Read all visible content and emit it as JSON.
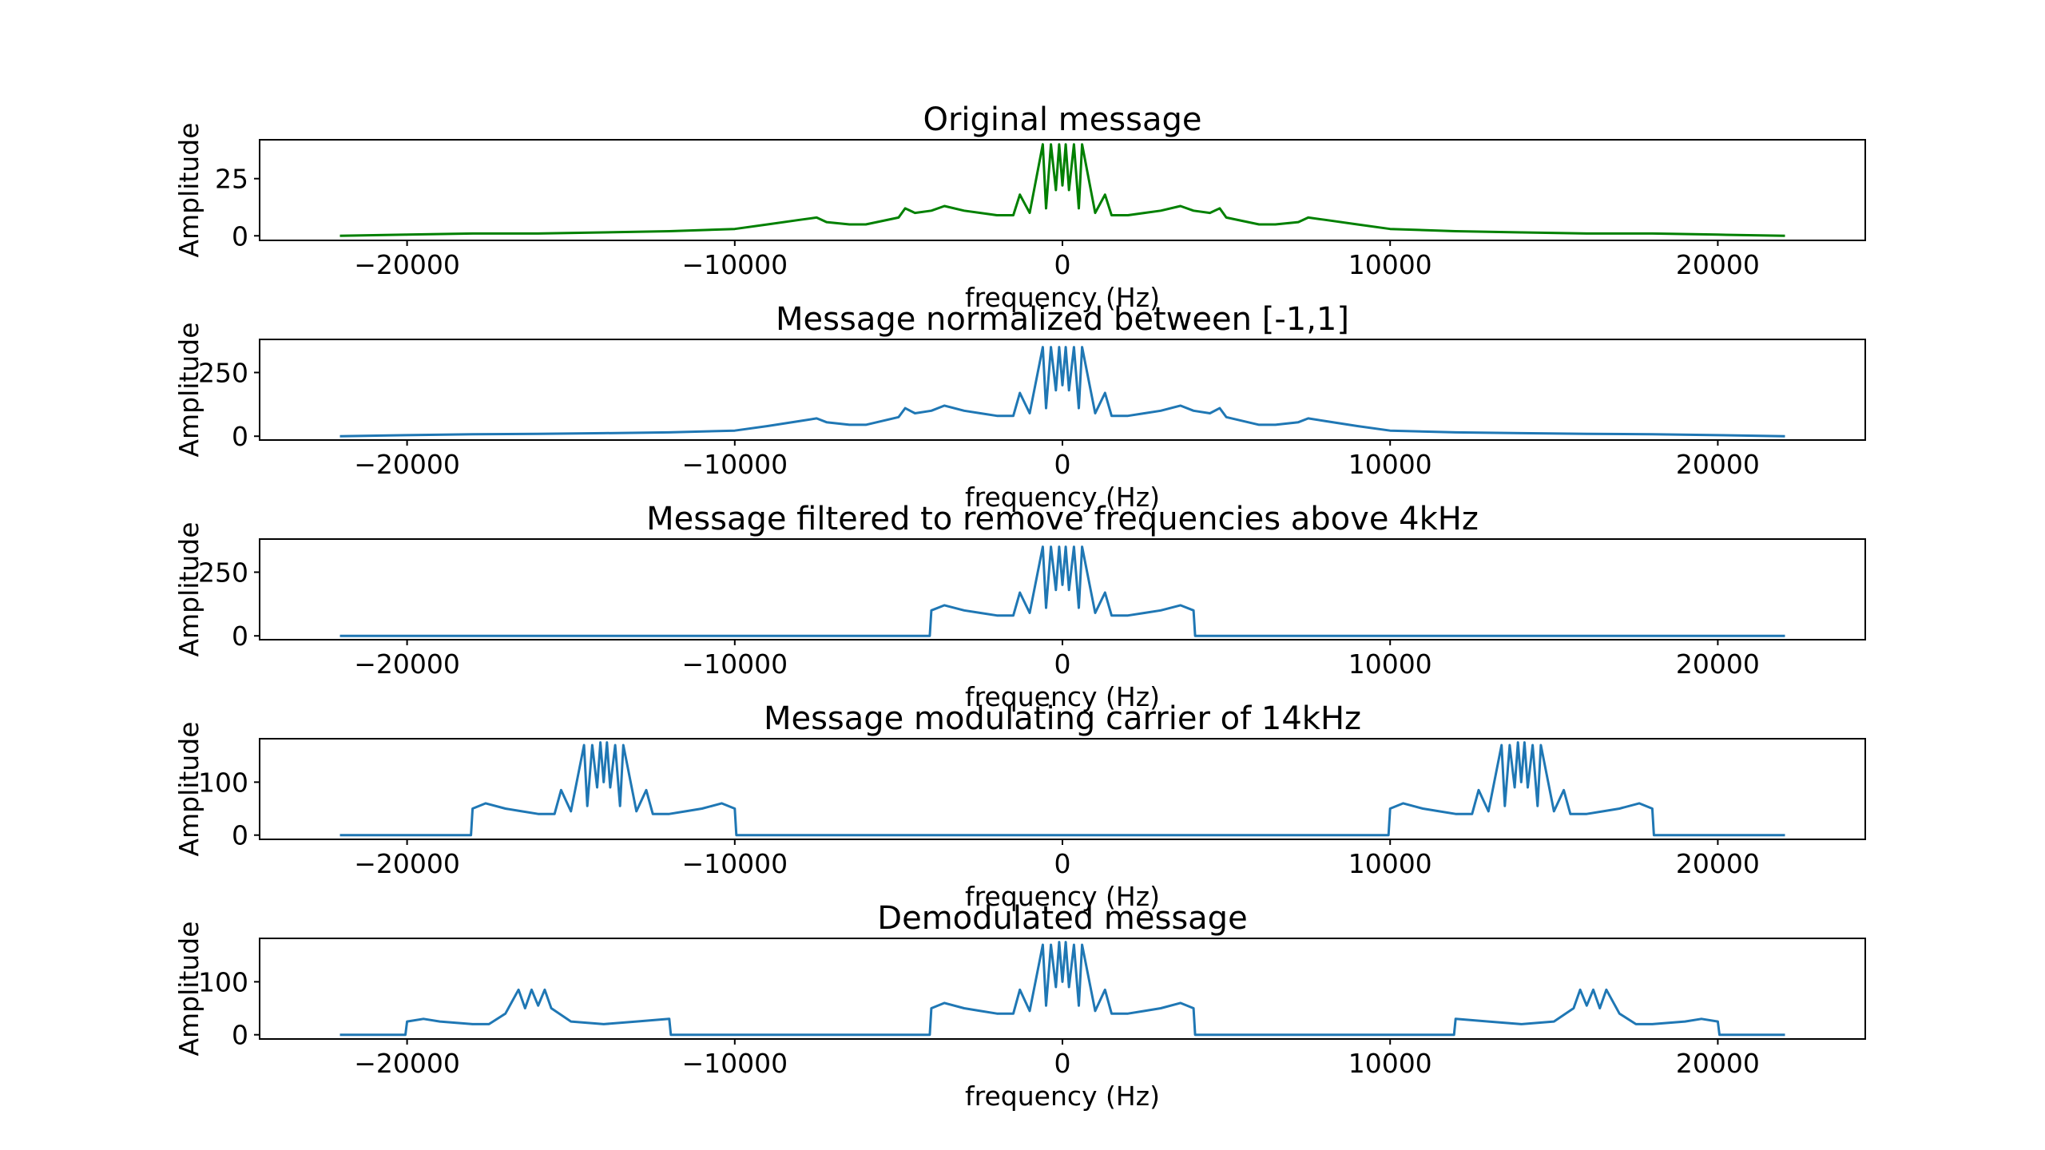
{
  "chart_data": [
    {
      "type": "line",
      "title": "Original message",
      "xlabel": "frequency (Hz)",
      "ylabel": "Amplitude",
      "xlim": [
        -24500,
        24500
      ],
      "ylim": [
        -2,
        42
      ],
      "xticks": [
        -20000,
        -10000,
        0,
        10000,
        20000
      ],
      "xtick_labels": [
        "−20000",
        "−10000",
        "0",
        "10000",
        "20000"
      ],
      "yticks": [
        0,
        25
      ],
      "ytick_labels": [
        "0",
        "25"
      ],
      "color": "#008000",
      "grid": false,
      "series": [
        {
          "x": [
            -22050,
            -20000,
            -18000,
            -16000,
            -14000,
            -12000,
            -10000,
            -9000,
            -8000,
            -7500,
            -7200,
            -6500,
            -6000,
            -5000,
            -4800,
            -4500,
            -4000,
            -3600,
            -3000,
            -2500,
            -2000,
            -1500,
            -1300,
            -1000,
            -600,
            -500,
            -350,
            -200,
            -100,
            0,
            100,
            200,
            350,
            500,
            600,
            1000,
            1300,
            1500,
            2000,
            2500,
            3000,
            3600,
            4000,
            4500,
            4800,
            5000,
            6000,
            6500,
            7200,
            7500,
            8000,
            9000,
            10000,
            12000,
            14000,
            16000,
            18000,
            20000,
            22050
          ],
          "y": [
            0,
            0.5,
            1,
            1,
            1.5,
            2,
            3,
            5,
            7,
            8,
            6,
            5,
            5,
            8,
            12,
            10,
            11,
            13,
            11,
            10,
            9,
            9,
            18,
            10,
            40,
            12,
            40,
            20,
            40,
            22,
            40,
            20,
            40,
            12,
            40,
            10,
            18,
            9,
            9,
            10,
            11,
            13,
            11,
            10,
            12,
            8,
            5,
            5,
            6,
            8,
            7,
            5,
            3,
            2,
            1.5,
            1,
            1,
            0.5,
            0
          ]
        }
      ]
    },
    {
      "type": "line",
      "title": "Message normalized between [-1,1]",
      "xlabel": "frequency (Hz)",
      "ylabel": "Amplitude",
      "xlim": [
        -24500,
        24500
      ],
      "ylim": [
        -15,
        380
      ],
      "xticks": [
        -20000,
        -10000,
        0,
        10000,
        20000
      ],
      "xtick_labels": [
        "−20000",
        "−10000",
        "0",
        "10000",
        "20000"
      ],
      "yticks": [
        0,
        250
      ],
      "ytick_labels": [
        "0",
        "250"
      ],
      "color": "#1f77b4",
      "grid": false,
      "series": [
        {
          "x": [
            -22050,
            -20000,
            -18000,
            -16000,
            -14000,
            -12000,
            -10000,
            -9000,
            -8000,
            -7500,
            -7200,
            -6500,
            -6000,
            -5000,
            -4800,
            -4500,
            -4000,
            -3600,
            -3000,
            -2500,
            -2000,
            -1500,
            -1300,
            -1000,
            -600,
            -500,
            -350,
            -200,
            -100,
            0,
            100,
            200,
            350,
            500,
            600,
            1000,
            1300,
            1500,
            2000,
            2500,
            3000,
            3600,
            4000,
            4500,
            4800,
            5000,
            6000,
            6500,
            7200,
            7500,
            8000,
            9000,
            10000,
            12000,
            14000,
            16000,
            18000,
            20000,
            22050
          ],
          "y": [
            0,
            4,
            8,
            9,
            12,
            15,
            22,
            40,
            60,
            70,
            55,
            45,
            45,
            75,
            110,
            90,
            100,
            120,
            100,
            90,
            80,
            80,
            170,
            90,
            350,
            110,
            350,
            180,
            350,
            200,
            350,
            180,
            350,
            110,
            350,
            90,
            170,
            80,
            80,
            90,
            100,
            120,
            100,
            90,
            110,
            75,
            45,
            45,
            55,
            70,
            60,
            40,
            22,
            15,
            12,
            9,
            8,
            4,
            0
          ]
        }
      ]
    },
    {
      "type": "line",
      "title": "Message filtered to remove frequencies above 4kHz",
      "xlabel": "frequency (Hz)",
      "ylabel": "Amplitude",
      "xlim": [
        -24500,
        24500
      ],
      "ylim": [
        -15,
        380
      ],
      "xticks": [
        -20000,
        -10000,
        0,
        10000,
        20000
      ],
      "xtick_labels": [
        "−20000",
        "−10000",
        "0",
        "10000",
        "20000"
      ],
      "yticks": [
        0,
        250
      ],
      "ytick_labels": [
        "0",
        "250"
      ],
      "color": "#1f77b4",
      "grid": false,
      "series": [
        {
          "x": [
            -22050,
            -4050,
            -4000,
            -3600,
            -3000,
            -2500,
            -2000,
            -1500,
            -1300,
            -1000,
            -600,
            -500,
            -350,
            -200,
            -100,
            0,
            100,
            200,
            350,
            500,
            600,
            1000,
            1300,
            1500,
            2000,
            2500,
            3000,
            3600,
            4000,
            4050,
            22050
          ],
          "y": [
            0,
            0,
            100,
            120,
            100,
            90,
            80,
            80,
            170,
            90,
            350,
            110,
            350,
            180,
            350,
            200,
            350,
            180,
            350,
            110,
            350,
            90,
            170,
            80,
            80,
            90,
            100,
            120,
            100,
            0,
            0
          ]
        }
      ]
    },
    {
      "type": "line",
      "title": "Message modulating carrier of 14kHz",
      "xlabel": "frequency (Hz)",
      "ylabel": "Amplitude",
      "xlim": [
        -24500,
        24500
      ],
      "ylim": [
        -8,
        182
      ],
      "xticks": [
        -20000,
        -10000,
        0,
        10000,
        20000
      ],
      "xtick_labels": [
        "−20000",
        "−10000",
        "0",
        "10000",
        "20000"
      ],
      "yticks": [
        0,
        100
      ],
      "ytick_labels": [
        "0",
        "100"
      ],
      "color": "#1f77b4",
      "grid": false,
      "series": [
        {
          "x": [
            -22050,
            -18050,
            -18000,
            -17600,
            -17000,
            -16500,
            -16000,
            -15500,
            -15300,
            -15000,
            -14600,
            -14500,
            -14350,
            -14200,
            -14100,
            -14000,
            -13900,
            -13800,
            -13650,
            -13500,
            -13400,
            -13000,
            -12700,
            -12500,
            -12000,
            -11500,
            -11000,
            -10400,
            -10000,
            -9950,
            9950,
            10000,
            10400,
            11000,
            11500,
            12000,
            12500,
            12700,
            13000,
            13400,
            13500,
            13650,
            13800,
            13900,
            14000,
            14100,
            14200,
            14350,
            14500,
            14600,
            15000,
            15300,
            15500,
            16000,
            16500,
            17000,
            17600,
            18000,
            18050,
            22050
          ],
          "y": [
            0,
            0,
            50,
            60,
            50,
            45,
            40,
            40,
            85,
            45,
            170,
            55,
            170,
            90,
            175,
            100,
            175,
            90,
            170,
            55,
            170,
            45,
            85,
            40,
            40,
            45,
            50,
            60,
            50,
            0,
            0,
            50,
            60,
            50,
            45,
            40,
            40,
            85,
            45,
            170,
            55,
            170,
            90,
            175,
            100,
            175,
            90,
            170,
            55,
            170,
            45,
            85,
            40,
            40,
            45,
            50,
            60,
            50,
            0,
            0
          ]
        }
      ]
    },
    {
      "type": "line",
      "title": "Demodulated message",
      "xlabel": "frequency (Hz)",
      "ylabel": "Amplitude",
      "xlim": [
        -24500,
        24500
      ],
      "ylim": [
        -8,
        182
      ],
      "xticks": [
        -20000,
        -10000,
        0,
        10000,
        20000
      ],
      "xtick_labels": [
        "−20000",
        "−10000",
        "0",
        "10000",
        "20000"
      ],
      "yticks": [
        0,
        100
      ],
      "ytick_labels": [
        "0",
        "100"
      ],
      "color": "#1f77b4",
      "grid": false,
      "series": [
        {
          "x": [
            -22050,
            -20050,
            -20000,
            -19500,
            -19000,
            -18000,
            -17500,
            -17000,
            -16600,
            -16400,
            -16200,
            -16000,
            -15800,
            -15600,
            -15000,
            -14000,
            -13000,
            -12000,
            -11950,
            -4050,
            -4000,
            -3600,
            -3000,
            -2500,
            -2000,
            -1500,
            -1300,
            -1000,
            -600,
            -500,
            -350,
            -200,
            -100,
            0,
            100,
            200,
            350,
            500,
            600,
            1000,
            1300,
            1500,
            2000,
            2500,
            3000,
            3600,
            4000,
            4050,
            11950,
            12000,
            13000,
            14000,
            15000,
            15600,
            15800,
            16000,
            16200,
            16400,
            16600,
            17000,
            17500,
            18000,
            19000,
            19500,
            20000,
            20050,
            22050
          ],
          "y": [
            0,
            0,
            25,
            30,
            25,
            20,
            20,
            40,
            85,
            50,
            85,
            55,
            85,
            50,
            25,
            20,
            25,
            30,
            0,
            0,
            50,
            60,
            50,
            45,
            40,
            40,
            85,
            45,
            170,
            55,
            170,
            90,
            175,
            100,
            175,
            90,
            170,
            55,
            170,
            45,
            85,
            40,
            40,
            45,
            50,
            60,
            50,
            0,
            0,
            30,
            25,
            20,
            25,
            50,
            85,
            55,
            85,
            50,
            85,
            40,
            20,
            20,
            25,
            30,
            25,
            0,
            0
          ]
        }
      ]
    }
  ]
}
